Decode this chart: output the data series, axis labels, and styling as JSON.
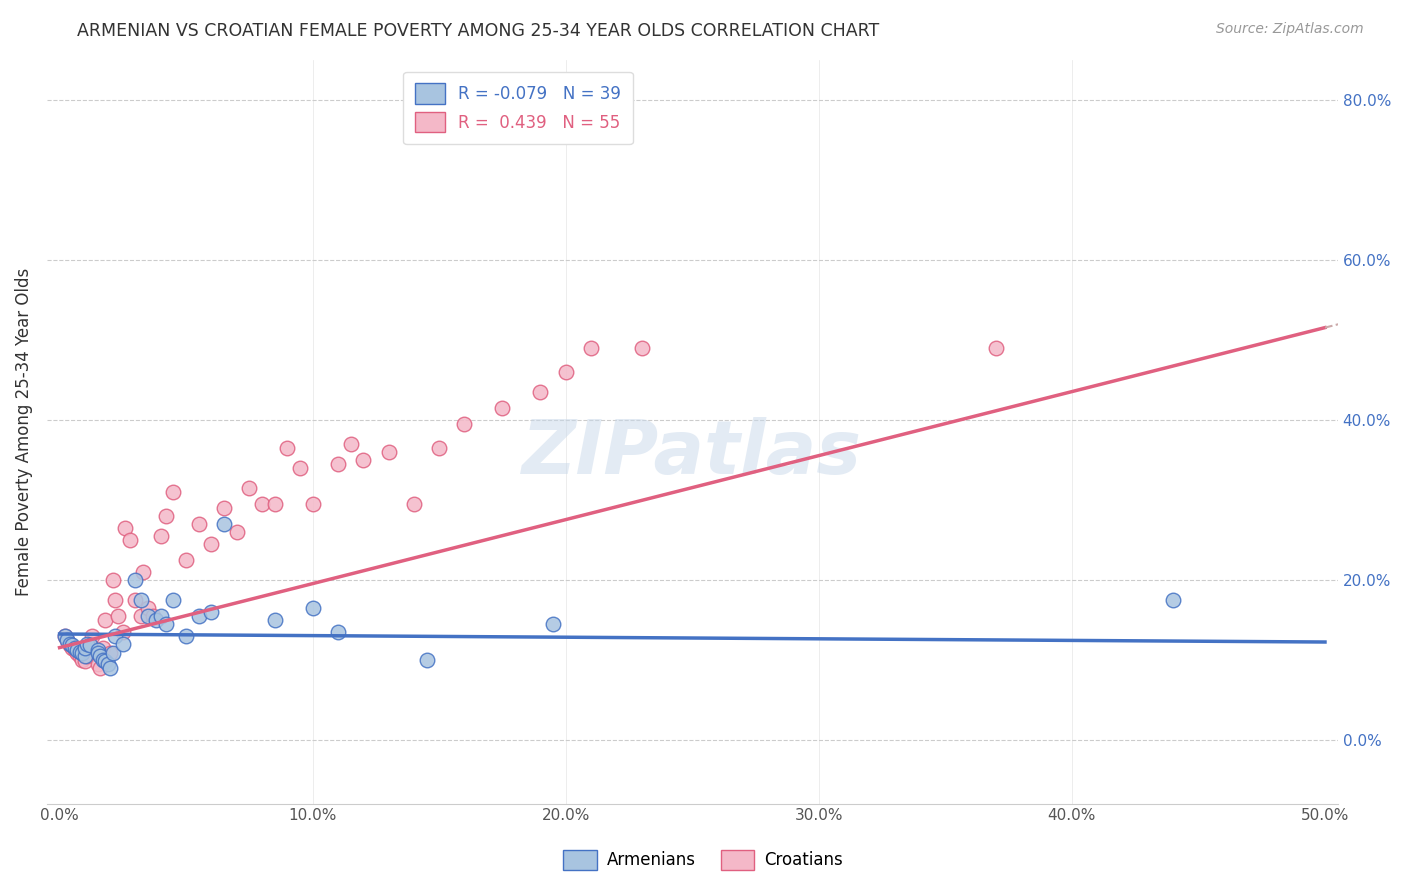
{
  "title": "ARMENIAN VS CROATIAN FEMALE POVERTY AMONG 25-34 YEAR OLDS CORRELATION CHART",
  "source": "Source: ZipAtlas.com",
  "ylabel": "Female Poverty Among 25-34 Year Olds",
  "x_tick_labels": [
    "0.0%",
    "",
    "10.0%",
    "",
    "20.0%",
    "",
    "30.0%",
    "",
    "40.0%",
    "",
    "50.0%"
  ],
  "x_tick_values": [
    0.0,
    0.05,
    0.1,
    0.15,
    0.2,
    0.25,
    0.3,
    0.35,
    0.4,
    0.45,
    0.5
  ],
  "y_tick_labels": [
    "80.0%",
    "60.0%",
    "40.0%",
    "20.0%",
    "0.0%"
  ],
  "y_tick_values": [
    0.8,
    0.6,
    0.4,
    0.2,
    0.0
  ],
  "xlim": [
    -0.005,
    0.505
  ],
  "ylim": [
    -0.08,
    0.85
  ],
  "armenian_color": "#a8c4e0",
  "croatian_color": "#f4b8c8",
  "armenian_line_color": "#4472c4",
  "croatian_line_color": "#e06080",
  "legend_R_armenian": "-0.079",
  "legend_N_armenian": "39",
  "legend_R_croatian": "0.439",
  "legend_N_croatian": "55",
  "watermark": "ZIPatlas",
  "armenian_scatter_x": [
    0.002,
    0.003,
    0.004,
    0.005,
    0.006,
    0.007,
    0.008,
    0.009,
    0.01,
    0.01,
    0.011,
    0.012,
    0.015,
    0.015,
    0.016,
    0.017,
    0.018,
    0.019,
    0.02,
    0.021,
    0.022,
    0.025,
    0.03,
    0.032,
    0.035,
    0.038,
    0.04,
    0.042,
    0.045,
    0.05,
    0.055,
    0.06,
    0.065,
    0.085,
    0.1,
    0.11,
    0.145,
    0.195,
    0.44
  ],
  "armenian_scatter_y": [
    0.13,
    0.125,
    0.12,
    0.118,
    0.115,
    0.112,
    0.11,
    0.108,
    0.105,
    0.115,
    0.12,
    0.118,
    0.112,
    0.108,
    0.105,
    0.1,
    0.098,
    0.095,
    0.09,
    0.108,
    0.13,
    0.12,
    0.2,
    0.175,
    0.155,
    0.15,
    0.155,
    0.145,
    0.175,
    0.13,
    0.155,
    0.16,
    0.27,
    0.15,
    0.165,
    0.135,
    0.1,
    0.145,
    0.175
  ],
  "croatian_scatter_x": [
    0.002,
    0.003,
    0.004,
    0.005,
    0.006,
    0.007,
    0.008,
    0.009,
    0.01,
    0.011,
    0.012,
    0.013,
    0.015,
    0.016,
    0.017,
    0.018,
    0.02,
    0.021,
    0.022,
    0.023,
    0.025,
    0.026,
    0.028,
    0.03,
    0.032,
    0.033,
    0.035,
    0.037,
    0.04,
    0.042,
    0.045,
    0.05,
    0.055,
    0.06,
    0.065,
    0.07,
    0.075,
    0.08,
    0.085,
    0.09,
    0.095,
    0.1,
    0.11,
    0.115,
    0.12,
    0.13,
    0.14,
    0.15,
    0.16,
    0.175,
    0.19,
    0.2,
    0.21,
    0.23,
    0.37
  ],
  "croatian_scatter_y": [
    0.13,
    0.125,
    0.118,
    0.115,
    0.112,
    0.108,
    0.105,
    0.1,
    0.098,
    0.105,
    0.12,
    0.13,
    0.095,
    0.09,
    0.115,
    0.15,
    0.108,
    0.2,
    0.175,
    0.155,
    0.135,
    0.265,
    0.25,
    0.175,
    0.155,
    0.21,
    0.165,
    0.155,
    0.255,
    0.28,
    0.31,
    0.225,
    0.27,
    0.245,
    0.29,
    0.26,
    0.315,
    0.295,
    0.295,
    0.365,
    0.34,
    0.295,
    0.345,
    0.37,
    0.35,
    0.36,
    0.295,
    0.365,
    0.395,
    0.415,
    0.435,
    0.46,
    0.49,
    0.49,
    0.49
  ]
}
